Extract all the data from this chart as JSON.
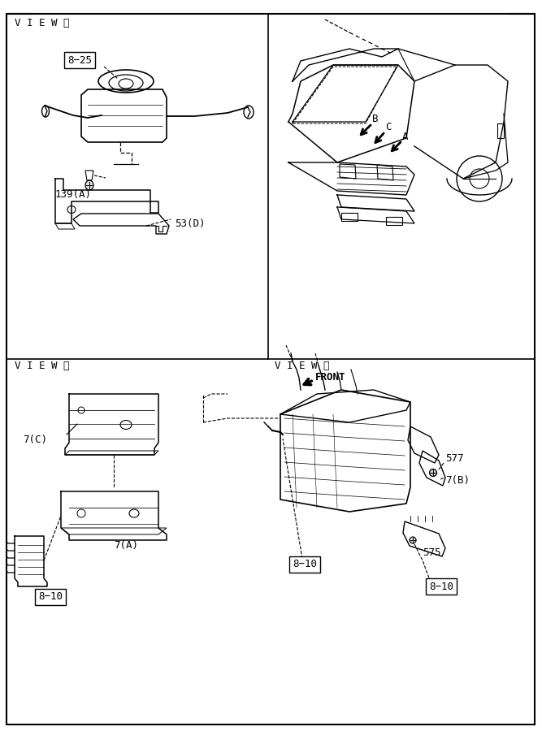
{
  "bg_color": "#ffffff",
  "line_color": "#000000",
  "text_color": "#000000",
  "fig_width": 6.67,
  "fig_height": 9.0,
  "label_8_25": "8−25",
  "label_53D": "53(D)",
  "label_139A": "139(A)",
  "label_7C": "7(C)",
  "label_7A": "7(A)",
  "label_8_10": "8−10",
  "label_577": "577",
  "label_7B": "7(B)",
  "label_575": "575",
  "label_front": "FRONT",
  "label_viewA": "V I E W Ⓐ",
  "label_viewB": "V I E W Ⓑ",
  "label_viewC": "V I E W Ⓒ",
  "label_B": "B",
  "label_C": "C",
  "label_A": "A"
}
